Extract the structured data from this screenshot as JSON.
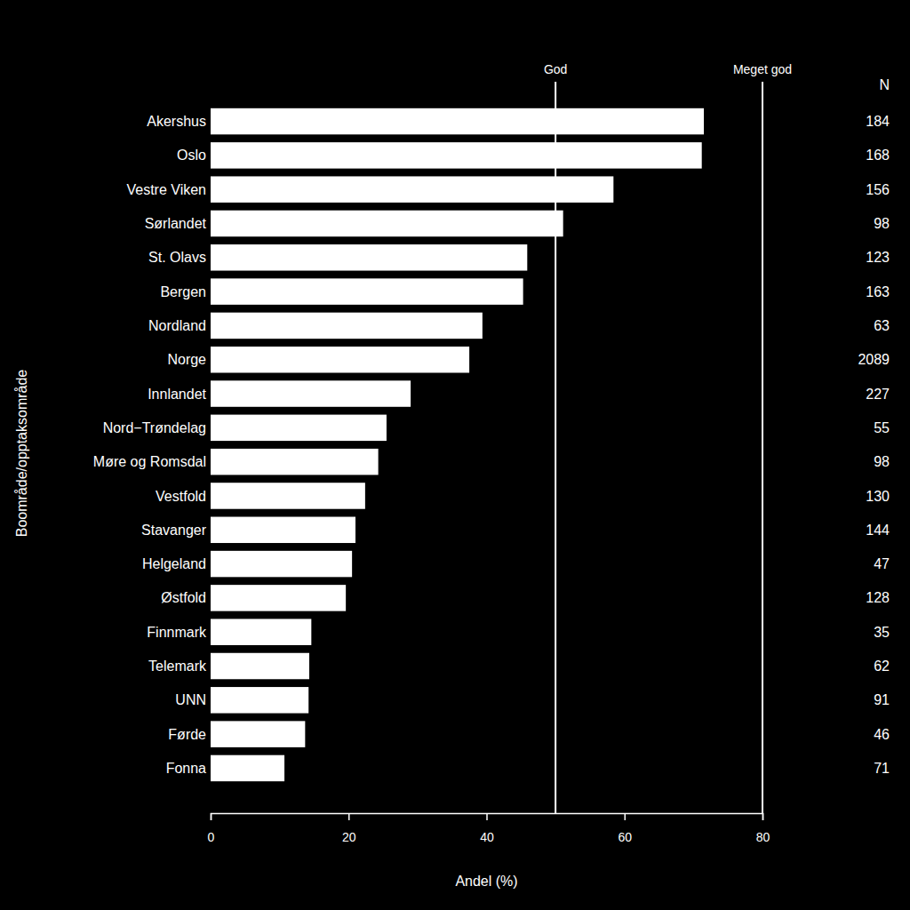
{
  "chart_data": {
    "type": "bar",
    "orientation": "horizontal",
    "x_label": "Andel (%)",
    "y_label": "Boområde/opptaksområde",
    "categories": [
      "Akershus",
      "Oslo",
      "Vestre Viken",
      "Sørlandet",
      "St. Olavs",
      "Bergen",
      "Nordland",
      "Norge",
      "Innlandet",
      "Nord−Trøndelag",
      "Møre og Romsdal",
      "Vestfold",
      "Stavanger",
      "Helgeland",
      "Østfold",
      "Finnmark",
      "Telemark",
      "UNN",
      "Førde",
      "Fonna"
    ],
    "values": [
      71.5,
      71.2,
      58.4,
      51.1,
      45.9,
      45.3,
      39.4,
      37.5,
      29.0,
      25.5,
      24.3,
      22.4,
      21.0,
      20.5,
      19.6,
      14.6,
      14.3,
      14.2,
      13.7,
      10.7
    ],
    "color": "#ffffff",
    "n_label": "N",
    "n": [
      184,
      168,
      156,
      98,
      123,
      163,
      63,
      2089,
      227,
      55,
      98,
      130,
      144,
      47,
      128,
      35,
      62,
      91,
      46,
      71
    ],
    "reference_lines": [
      {
        "value": 50,
        "label": "God"
      },
      {
        "value": 80,
        "label": "Meget god"
      }
    ],
    "xlim": [
      0,
      80
    ],
    "xticks": [
      0,
      20,
      40,
      60,
      80
    ],
    "grid": false
  }
}
